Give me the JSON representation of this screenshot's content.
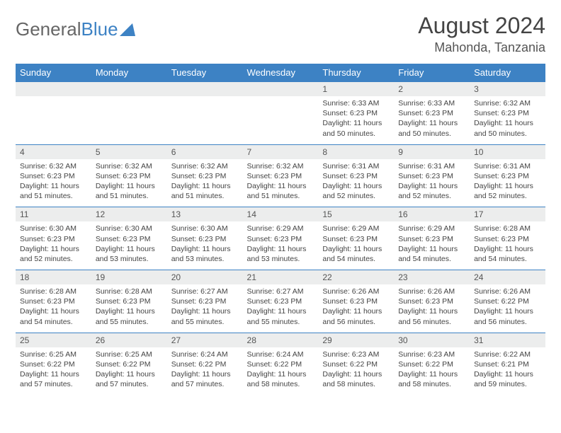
{
  "logo": {
    "gray": "General",
    "blue": "Blue"
  },
  "title": "August 2024",
  "location": "Mahonda, Tanzania",
  "colors": {
    "header_bg": "#3d82c4",
    "header_fg": "#ffffff",
    "daynum_bg": "#eceded",
    "text": "#444444"
  },
  "day_labels": [
    "Sunday",
    "Monday",
    "Tuesday",
    "Wednesday",
    "Thursday",
    "Friday",
    "Saturday"
  ],
  "weeks": [
    {
      "nums": [
        "",
        "",
        "",
        "",
        "1",
        "2",
        "3"
      ],
      "details": [
        "",
        "",
        "",
        "",
        "Sunrise: 6:33 AM\nSunset: 6:23 PM\nDaylight: 11 hours and 50 minutes.",
        "Sunrise: 6:33 AM\nSunset: 6:23 PM\nDaylight: 11 hours and 50 minutes.",
        "Sunrise: 6:32 AM\nSunset: 6:23 PM\nDaylight: 11 hours and 50 minutes."
      ]
    },
    {
      "nums": [
        "4",
        "5",
        "6",
        "7",
        "8",
        "9",
        "10"
      ],
      "details": [
        "Sunrise: 6:32 AM\nSunset: 6:23 PM\nDaylight: 11 hours and 51 minutes.",
        "Sunrise: 6:32 AM\nSunset: 6:23 PM\nDaylight: 11 hours and 51 minutes.",
        "Sunrise: 6:32 AM\nSunset: 6:23 PM\nDaylight: 11 hours and 51 minutes.",
        "Sunrise: 6:32 AM\nSunset: 6:23 PM\nDaylight: 11 hours and 51 minutes.",
        "Sunrise: 6:31 AM\nSunset: 6:23 PM\nDaylight: 11 hours and 52 minutes.",
        "Sunrise: 6:31 AM\nSunset: 6:23 PM\nDaylight: 11 hours and 52 minutes.",
        "Sunrise: 6:31 AM\nSunset: 6:23 PM\nDaylight: 11 hours and 52 minutes."
      ]
    },
    {
      "nums": [
        "11",
        "12",
        "13",
        "14",
        "15",
        "16",
        "17"
      ],
      "details": [
        "Sunrise: 6:30 AM\nSunset: 6:23 PM\nDaylight: 11 hours and 52 minutes.",
        "Sunrise: 6:30 AM\nSunset: 6:23 PM\nDaylight: 11 hours and 53 minutes.",
        "Sunrise: 6:30 AM\nSunset: 6:23 PM\nDaylight: 11 hours and 53 minutes.",
        "Sunrise: 6:29 AM\nSunset: 6:23 PM\nDaylight: 11 hours and 53 minutes.",
        "Sunrise: 6:29 AM\nSunset: 6:23 PM\nDaylight: 11 hours and 54 minutes.",
        "Sunrise: 6:29 AM\nSunset: 6:23 PM\nDaylight: 11 hours and 54 minutes.",
        "Sunrise: 6:28 AM\nSunset: 6:23 PM\nDaylight: 11 hours and 54 minutes."
      ]
    },
    {
      "nums": [
        "18",
        "19",
        "20",
        "21",
        "22",
        "23",
        "24"
      ],
      "details": [
        "Sunrise: 6:28 AM\nSunset: 6:23 PM\nDaylight: 11 hours and 54 minutes.",
        "Sunrise: 6:28 AM\nSunset: 6:23 PM\nDaylight: 11 hours and 55 minutes.",
        "Sunrise: 6:27 AM\nSunset: 6:23 PM\nDaylight: 11 hours and 55 minutes.",
        "Sunrise: 6:27 AM\nSunset: 6:23 PM\nDaylight: 11 hours and 55 minutes.",
        "Sunrise: 6:26 AM\nSunset: 6:23 PM\nDaylight: 11 hours and 56 minutes.",
        "Sunrise: 6:26 AM\nSunset: 6:23 PM\nDaylight: 11 hours and 56 minutes.",
        "Sunrise: 6:26 AM\nSunset: 6:22 PM\nDaylight: 11 hours and 56 minutes."
      ]
    },
    {
      "nums": [
        "25",
        "26",
        "27",
        "28",
        "29",
        "30",
        "31"
      ],
      "details": [
        "Sunrise: 6:25 AM\nSunset: 6:22 PM\nDaylight: 11 hours and 57 minutes.",
        "Sunrise: 6:25 AM\nSunset: 6:22 PM\nDaylight: 11 hours and 57 minutes.",
        "Sunrise: 6:24 AM\nSunset: 6:22 PM\nDaylight: 11 hours and 57 minutes.",
        "Sunrise: 6:24 AM\nSunset: 6:22 PM\nDaylight: 11 hours and 58 minutes.",
        "Sunrise: 6:23 AM\nSunset: 6:22 PM\nDaylight: 11 hours and 58 minutes.",
        "Sunrise: 6:23 AM\nSunset: 6:22 PM\nDaylight: 11 hours and 58 minutes.",
        "Sunrise: 6:22 AM\nSunset: 6:21 PM\nDaylight: 11 hours and 59 minutes."
      ]
    }
  ]
}
